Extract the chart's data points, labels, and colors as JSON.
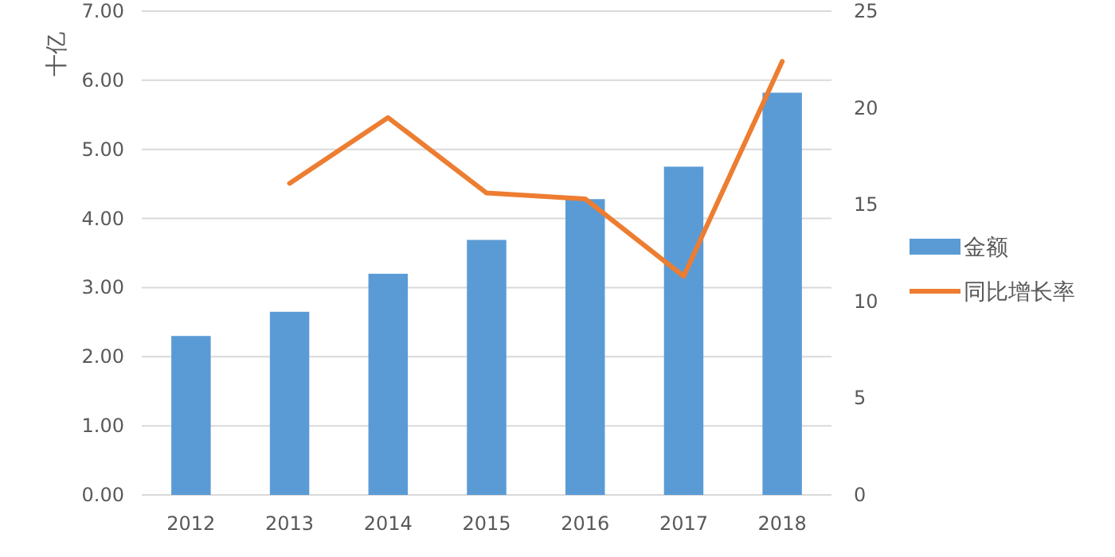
{
  "chart_data": {
    "type": "bar",
    "ylabel": "十亿",
    "categories": [
      "2012",
      "2013",
      "2014",
      "2015",
      "2016",
      "2017",
      "2018"
    ],
    "series": [
      {
        "name": "金额",
        "color": "#5b9bd5",
        "values": [
          2.3,
          2.65,
          3.2,
          3.69,
          4.28,
          4.75,
          5.82
        ]
      },
      {
        "name": "同比增长率",
        "color": "#ed7d31",
        "type": "line",
        "axis": "y2",
        "values": [
          null,
          16.1,
          19.5,
          15.6,
          15.3,
          11.3,
          22.4
        ]
      }
    ],
    "ylim": [
      0,
      7
    ],
    "yticks": [
      {
        "value": 0,
        "label": "0.00"
      },
      {
        "value": 1,
        "label": "1.00"
      },
      {
        "value": 2,
        "label": "2.00"
      },
      {
        "value": 3,
        "label": "3.00"
      },
      {
        "value": 4,
        "label": "4.00"
      },
      {
        "value": 5,
        "label": "5.00"
      },
      {
        "value": 6,
        "label": "6.00"
      },
      {
        "value": 7,
        "label": "7.00"
      }
    ],
    "y2lim": [
      0,
      25
    ],
    "y2ticks": [
      0,
      5,
      10,
      15,
      20,
      25
    ],
    "grid": "y",
    "legend": "right"
  }
}
